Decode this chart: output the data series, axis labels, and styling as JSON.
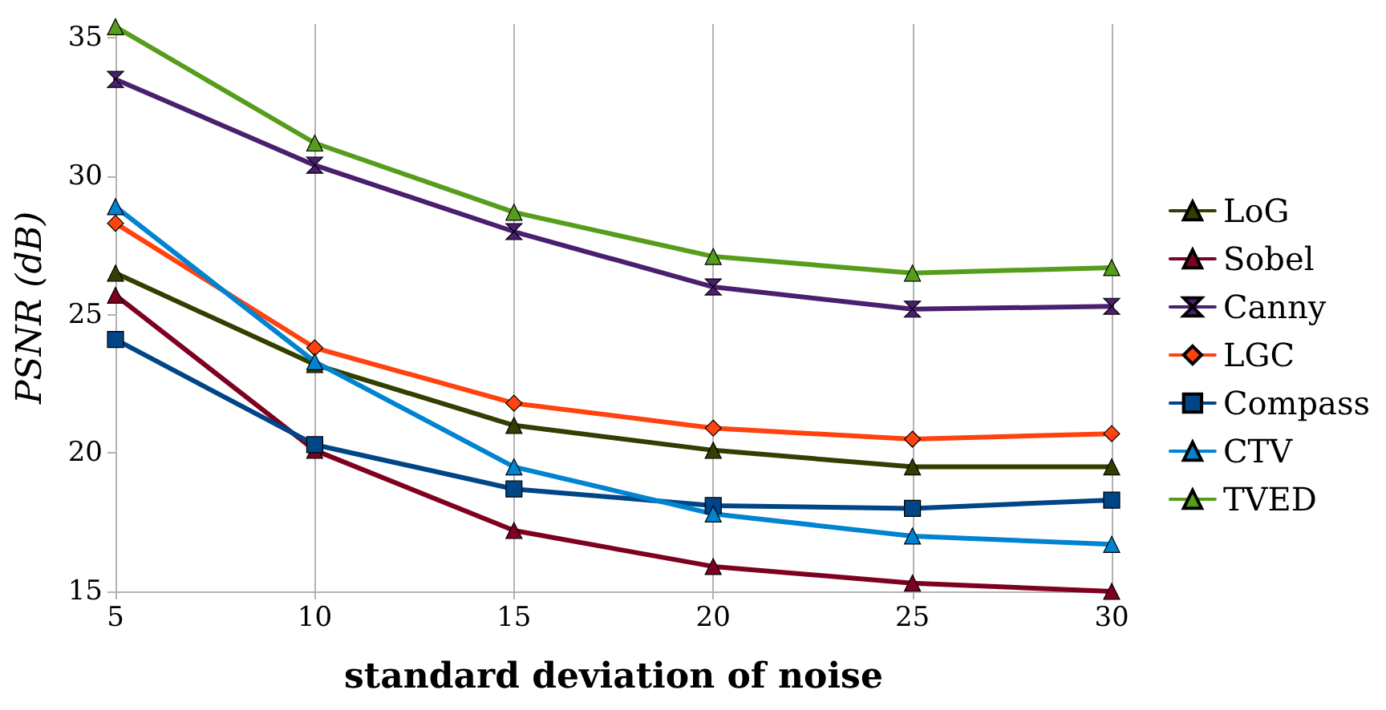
{
  "chart_data": {
    "type": "line",
    "xlabel": "standard deviation of noise",
    "ylabel": "PSNR (dB)",
    "x": [
      5,
      10,
      15,
      20,
      25,
      30
    ],
    "xlim": [
      5,
      30
    ],
    "xticks": [
      5,
      10,
      15,
      20,
      25,
      30
    ],
    "ylim": [
      15,
      35.5
    ],
    "yticks": [
      15,
      20,
      25,
      30,
      35
    ],
    "grid": "x",
    "legend": "right",
    "series": [
      {
        "name": "LoG",
        "color": "#333f00",
        "marker": "triangle",
        "values": [
          26.5,
          23.2,
          21.0,
          20.1,
          19.5,
          19.5
        ]
      },
      {
        "name": "Sobel",
        "color": "#7e0021",
        "marker": "triangle",
        "values": [
          25.7,
          20.1,
          17.2,
          15.9,
          15.3,
          15.0
        ]
      },
      {
        "name": "Canny",
        "color": "#4b1f6f",
        "marker": "cross",
        "values": [
          33.5,
          30.4,
          28.0,
          26.0,
          25.2,
          25.3
        ]
      },
      {
        "name": "LGC",
        "color": "#ff420e",
        "marker": "diamond",
        "values": [
          28.3,
          23.8,
          21.8,
          20.9,
          20.5,
          20.7
        ]
      },
      {
        "name": "Compass",
        "color": "#004586",
        "marker": "square",
        "values": [
          24.1,
          20.3,
          18.7,
          18.1,
          18.0,
          18.3
        ]
      },
      {
        "name": "CTV",
        "color": "#0084d1",
        "marker": "triangle",
        "values": [
          28.9,
          23.3,
          19.5,
          17.8,
          17.0,
          16.7
        ]
      },
      {
        "name": "TVED",
        "color": "#579d1c",
        "marker": "triangle",
        "values": [
          35.4,
          31.2,
          28.7,
          27.1,
          26.5,
          26.7
        ]
      }
    ]
  }
}
